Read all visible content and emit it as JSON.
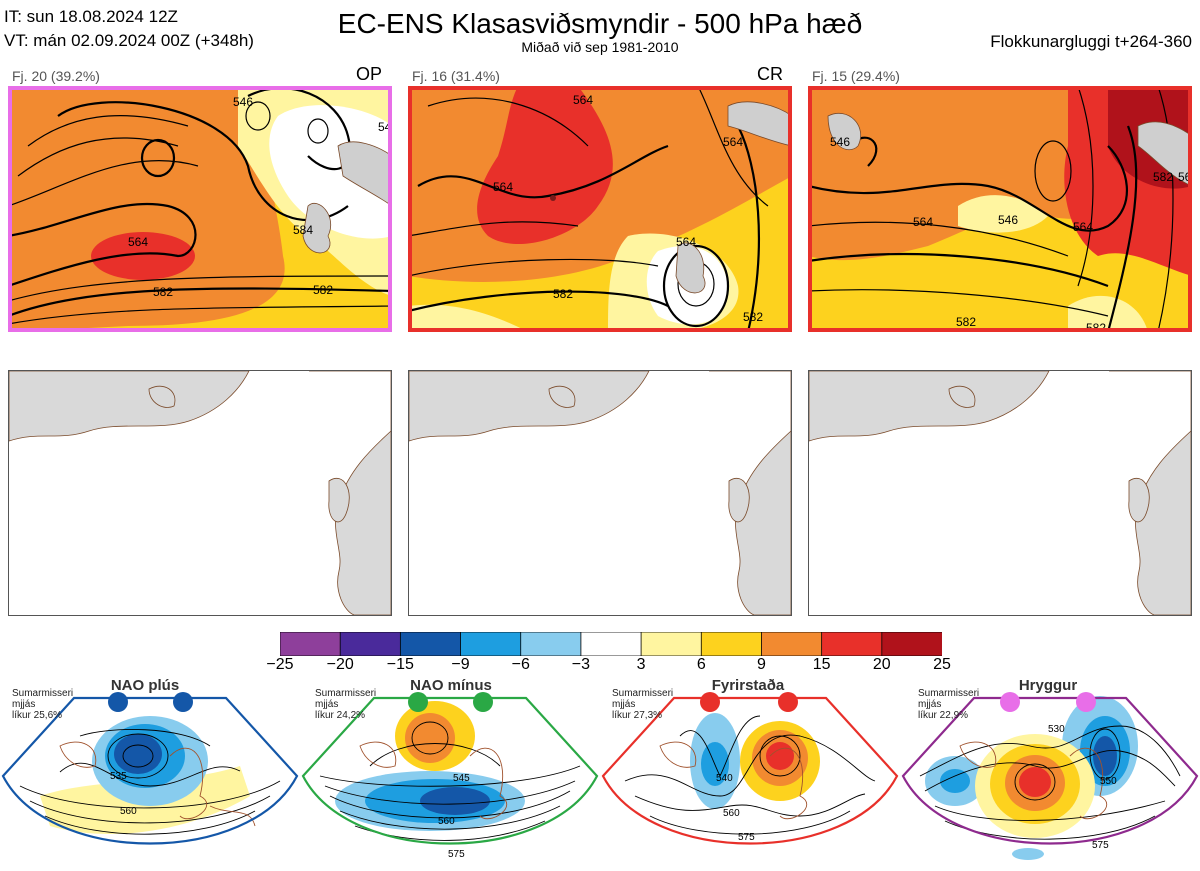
{
  "header": {
    "it_line": "IT: sun 18.08.2024 12Z",
    "vt_line": "VT: mán 02.09.2024 00Z  (+348h)",
    "title": "EC-ENS Klasasviðsmyndir - 500 hPa hæð",
    "subtitle": "Miðað við sep 1981-2010",
    "window": "Flokkunargluggi t+264-360"
  },
  "clusters": [
    {
      "label": "Fj. 20 (39.2%)",
      "tag": "OP",
      "border": "#e86ee8",
      "contour_labels": [
        "546",
        "564",
        "564",
        "584",
        "582",
        "582",
        "54"
      ]
    },
    {
      "label": "Fj. 16 (31.4%)",
      "tag": "CR",
      "border": "#e8302a",
      "contour_labels": [
        "564",
        "564",
        "564",
        "564",
        "582",
        "582"
      ]
    },
    {
      "label": "Fj. 15 (29.4%)",
      "tag": "",
      "border": "#e8302a",
      "contour_labels": [
        "546",
        "546",
        "564",
        "564",
        "582",
        "582",
        "582",
        "56"
      ]
    }
  ],
  "colorbar": {
    "ticks": [
      "−25",
      "−20",
      "−15",
      "−9",
      "−6",
      "−3",
      "3",
      "6",
      "9",
      "15",
      "20",
      "25"
    ],
    "colors": [
      "#8e3f9b",
      "#4a2a9b",
      "#1457a8",
      "#1e9ee0",
      "#88ccee",
      "#ffffff",
      "#fff5a0",
      "#fdd21e",
      "#f28a30",
      "#e8302a",
      "#b0121b"
    ]
  },
  "regimes": [
    {
      "name": "NAO plús",
      "note": [
        "Sumarmisseri",
        "mjjás",
        "líkur 25,6%"
      ],
      "border": "#1457a8",
      "dot": "#1457a8",
      "contours": [
        "535",
        "560"
      ]
    },
    {
      "name": "NAO mínus",
      "note": [
        "Sumarmisseri",
        "mjjás",
        "líkur 24,2%"
      ],
      "border": "#2aa845",
      "dot": "#2aa845",
      "contours": [
        "545",
        "560",
        "575"
      ]
    },
    {
      "name": "Fyrirstaða",
      "note": [
        "Sumarmisseri",
        "mjjás",
        "líkur 27,3%"
      ],
      "border": "#e8302a",
      "dot": "#e8302a",
      "contours": [
        "540",
        "560",
        "575"
      ]
    },
    {
      "name": "Hryggur",
      "note": [
        "Sumarmisseri",
        "mjjás",
        "líkur 22,9%"
      ],
      "border": "#8e2a8e",
      "dot": "#e86ee8",
      "contours": [
        "530",
        "550",
        "575"
      ]
    }
  ],
  "chart_data": {
    "type": "heatmap",
    "colorscale_ticks": [
      -25,
      -20,
      -15,
      -9,
      -6,
      -3,
      3,
      6,
      9,
      15,
      20,
      25
    ],
    "cluster_members": [
      20,
      16,
      15
    ],
    "cluster_percent": [
      39.2,
      31.4,
      29.4
    ],
    "regime_probability_percent": [
      25.6,
      24.2,
      27.3,
      22.9
    ]
  }
}
